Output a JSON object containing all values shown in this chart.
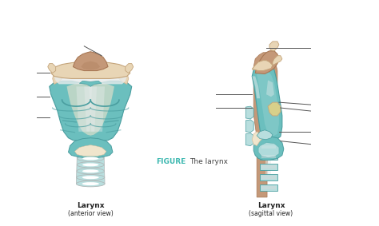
{
  "bg_color": "#ffffff",
  "figure_label_color": "#3db8b0",
  "figure_label_text": "FIGURE",
  "figure_subtitle": "The larynx",
  "left_title": "Larynx",
  "left_subtitle": "(anterior view)",
  "right_title": "Larynx",
  "right_subtitle": "(sagittal view)",
  "teal": "#6bbfbe",
  "teal_dark": "#4a9ea0",
  "teal_light": "#92d0cf",
  "teal_pale": "#b8dede",
  "teal_highlight": "#cde8e8",
  "beige": "#d4b896",
  "beige_light": "#e8d5b5",
  "beige_pale": "#f0e5cc",
  "beige_dark": "#c4a47a",
  "brown": "#c49878",
  "brown_dark": "#a87855",
  "gray_ring": "#b0b8b8",
  "gray_light": "#d5dada",
  "white_tissue": "#e8ecec",
  "annotation_line_color": "#555555"
}
